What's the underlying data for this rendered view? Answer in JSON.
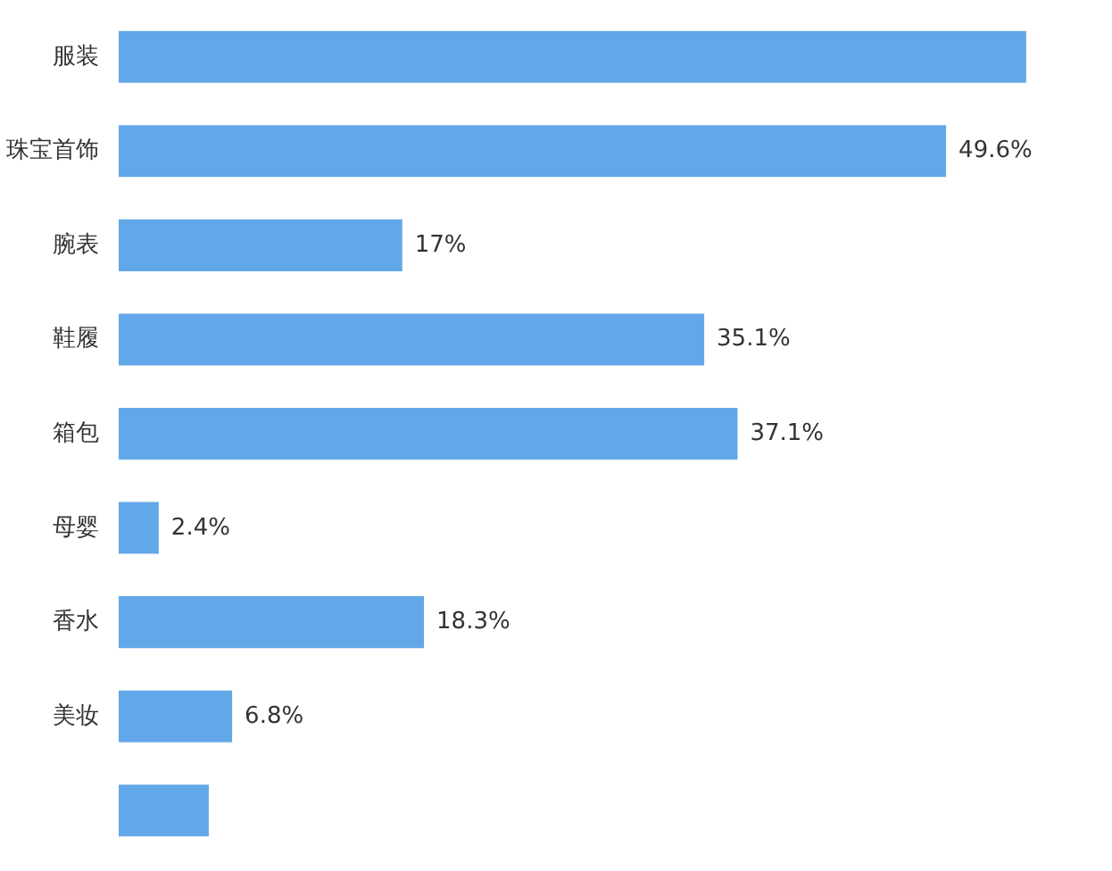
{
  "chart_data": {
    "type": "bar",
    "orientation": "horizontal",
    "categories": [
      "服装",
      "珠宝首饰",
      "腕表",
      "鞋履",
      "箱包",
      "母婴",
      "香水",
      "美妆",
      null
    ],
    "values": [
      54.4,
      49.6,
      17,
      35.1,
      37.1,
      2.4,
      18.3,
      6.8,
      5.4
    ],
    "value_labels": [
      null,
      "49.6%",
      "17%",
      "35.1%",
      "37.1%",
      "2.4%",
      "18.3%",
      "6.8%",
      null
    ],
    "color": "#62a8e8"
  }
}
